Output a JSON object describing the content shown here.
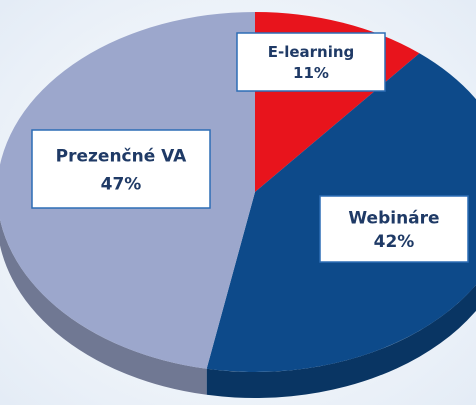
{
  "chart_data": {
    "type": "pie",
    "categories": [
      "E-learning",
      "Webináre",
      "Prezenčné VA"
    ],
    "values": [
      11,
      42,
      47
    ],
    "value_labels": [
      "11%",
      "42%",
      "47%"
    ],
    "colors": [
      "#e8141c",
      "#0d4a8a",
      "#9ca7cc"
    ]
  }
}
